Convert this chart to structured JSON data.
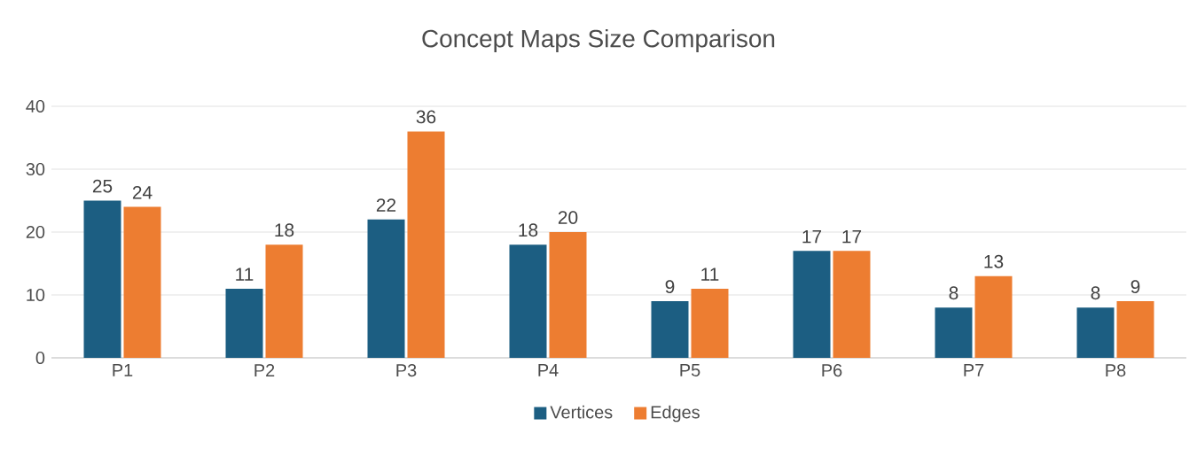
{
  "chart_data": {
    "type": "bar",
    "title": "Concept Maps Size Comparison",
    "categories": [
      "P1",
      "P2",
      "P3",
      "P4",
      "P5",
      "P6",
      "P7",
      "P8"
    ],
    "series": [
      {
        "name": "Vertices",
        "color": "#1c5e82",
        "values": [
          25,
          11,
          22,
          18,
          9,
          17,
          8,
          8
        ]
      },
      {
        "name": "Edges",
        "color": "#ed7d31",
        "values": [
          24,
          18,
          36,
          20,
          11,
          17,
          13,
          9
        ]
      }
    ],
    "ylim": [
      0,
      40
    ],
    "yticks": [
      0,
      10,
      20,
      30,
      40
    ],
    "grid": "y",
    "legend": "bottom",
    "data_labels": true
  }
}
